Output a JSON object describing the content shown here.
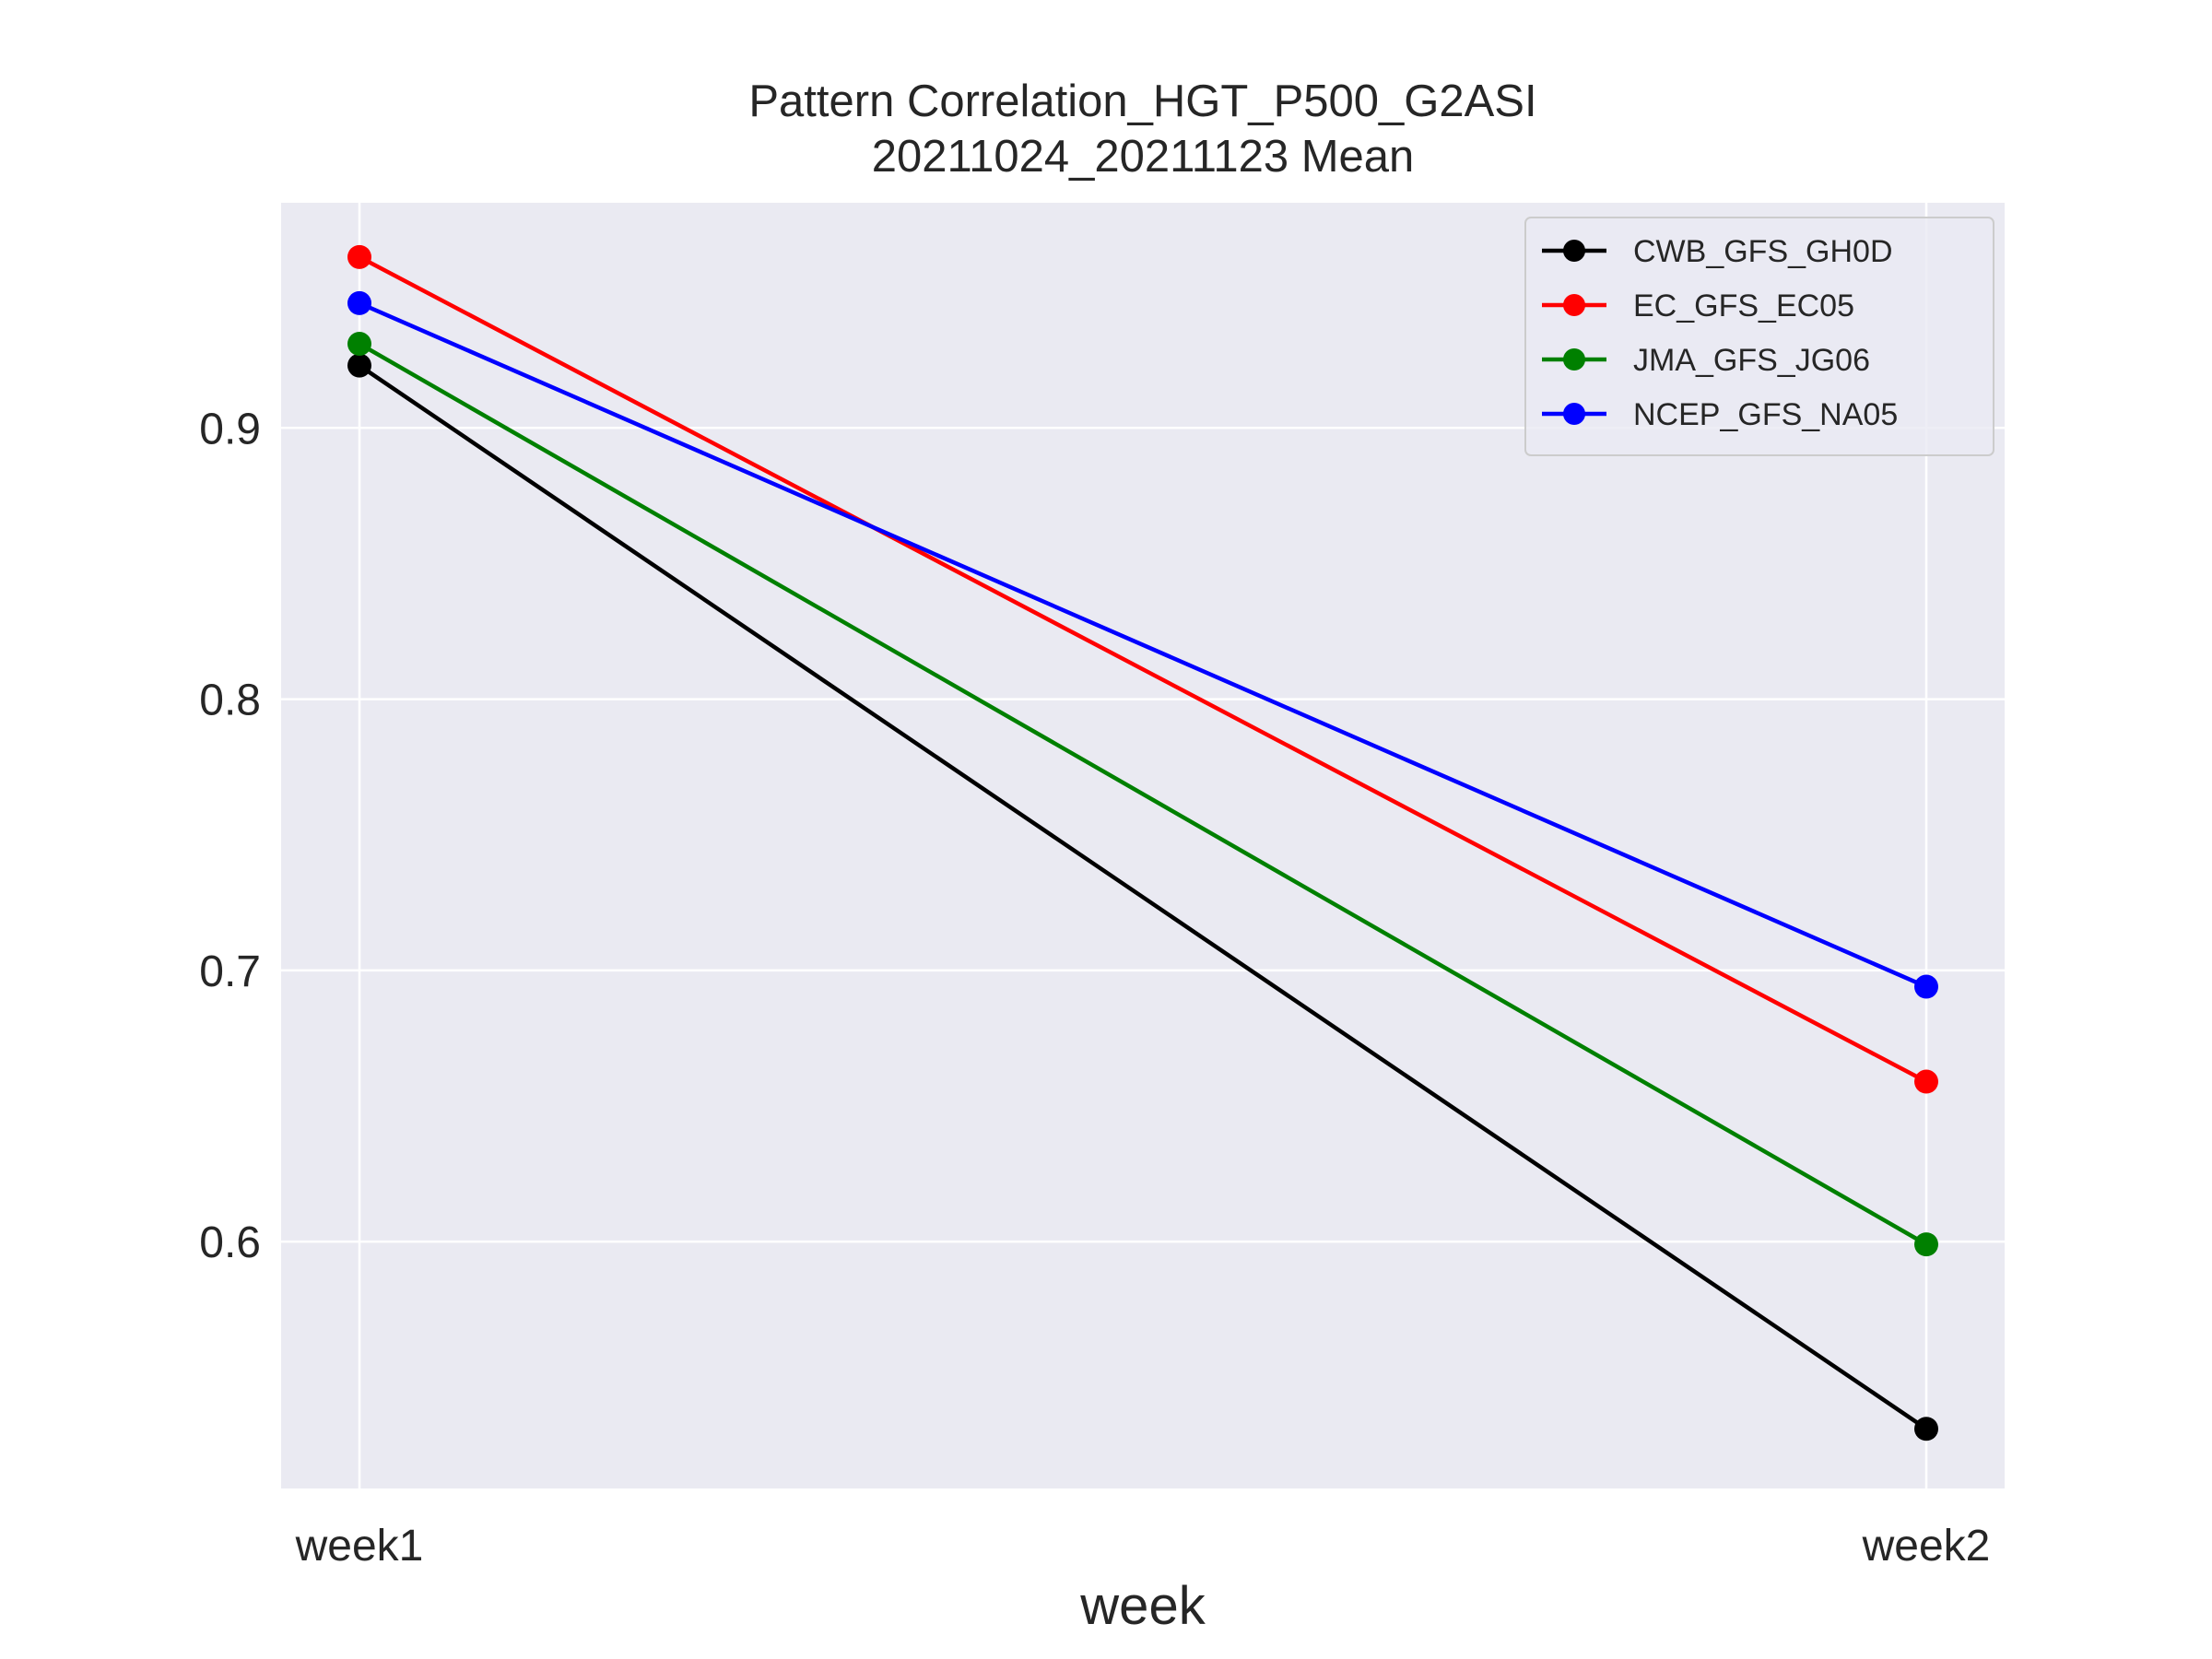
{
  "chart_data": {
    "type": "line",
    "title": "Pattern Correlation_HGT_P500_G2ASI",
    "subtitle": "20211024_20211123 Mean",
    "xlabel": "week",
    "ylabel": "",
    "categories": [
      "week1",
      "week2"
    ],
    "ylim": [
      0.509,
      0.983
    ],
    "yticks": [
      "0.6",
      "0.7",
      "0.8",
      "0.9"
    ],
    "grid": true,
    "legend_position": "top-right",
    "series": [
      {
        "name": "CWB_GFS_GH0D",
        "values": [
          0.923,
          0.531
        ],
        "color": "#000000"
      },
      {
        "name": "EC_GFS_EC05",
        "values": [
          0.963,
          0.659
        ],
        "color": "#ff0000"
      },
      {
        "name": "JMA_GFS_JG06",
        "values": [
          0.931,
          0.599
        ],
        "color": "#008000"
      },
      {
        "name": "NCEP_GFS_NA05",
        "values": [
          0.946,
          0.694
        ],
        "color": "#0000ff"
      }
    ],
    "colors": {
      "plot_background": "#eaeaf2",
      "grid": "#ffffff",
      "text": "#262626"
    }
  }
}
